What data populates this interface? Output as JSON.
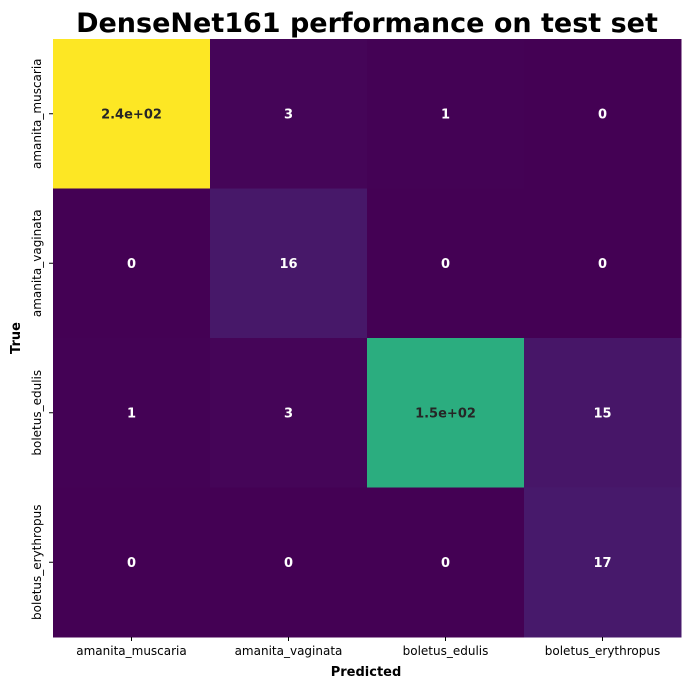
{
  "chart_data": {
    "type": "heatmap",
    "title": "DenseNet161 performance on test set",
    "xlabel": "Predicted",
    "ylabel": "True",
    "x_categories": [
      "amanita_muscaria",
      "amanita_vaginata",
      "boletus_edulis",
      "boletus_erythropus"
    ],
    "y_categories": [
      "amanita_muscaria",
      "amanita_vaginata",
      "boletus_edulis",
      "boletus_erythropus"
    ],
    "values": [
      [
        240,
        3,
        1,
        0
      ],
      [
        0,
        16,
        0,
        0
      ],
      [
        1,
        3,
        150,
        15
      ],
      [
        0,
        0,
        0,
        17
      ]
    ],
    "annotations": [
      [
        "2.4e+02",
        "3",
        "1",
        "0"
      ],
      [
        "0",
        "16",
        "0",
        "0"
      ],
      [
        "1",
        "3",
        "1.5e+02",
        "15"
      ],
      [
        "0",
        "0",
        "0",
        "17"
      ]
    ],
    "colormap": "viridis",
    "colorbar": false
  }
}
